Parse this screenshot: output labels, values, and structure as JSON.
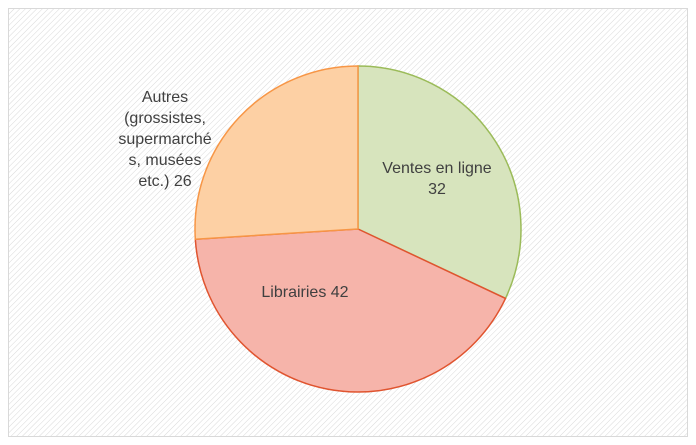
{
  "chart_data": {
    "type": "pie",
    "categories": [
      "Ventes en ligne",
      "Librairies",
      "Autres (grossistes, supermarchés, musées etc.)"
    ],
    "values": [
      32,
      42,
      26
    ],
    "colors": [
      "#d7e4bd",
      "#f6b4aa",
      "#fdd0a4"
    ],
    "edge_colors": [
      "#9bbb59",
      "#e0542f",
      "#f79646"
    ]
  }
}
